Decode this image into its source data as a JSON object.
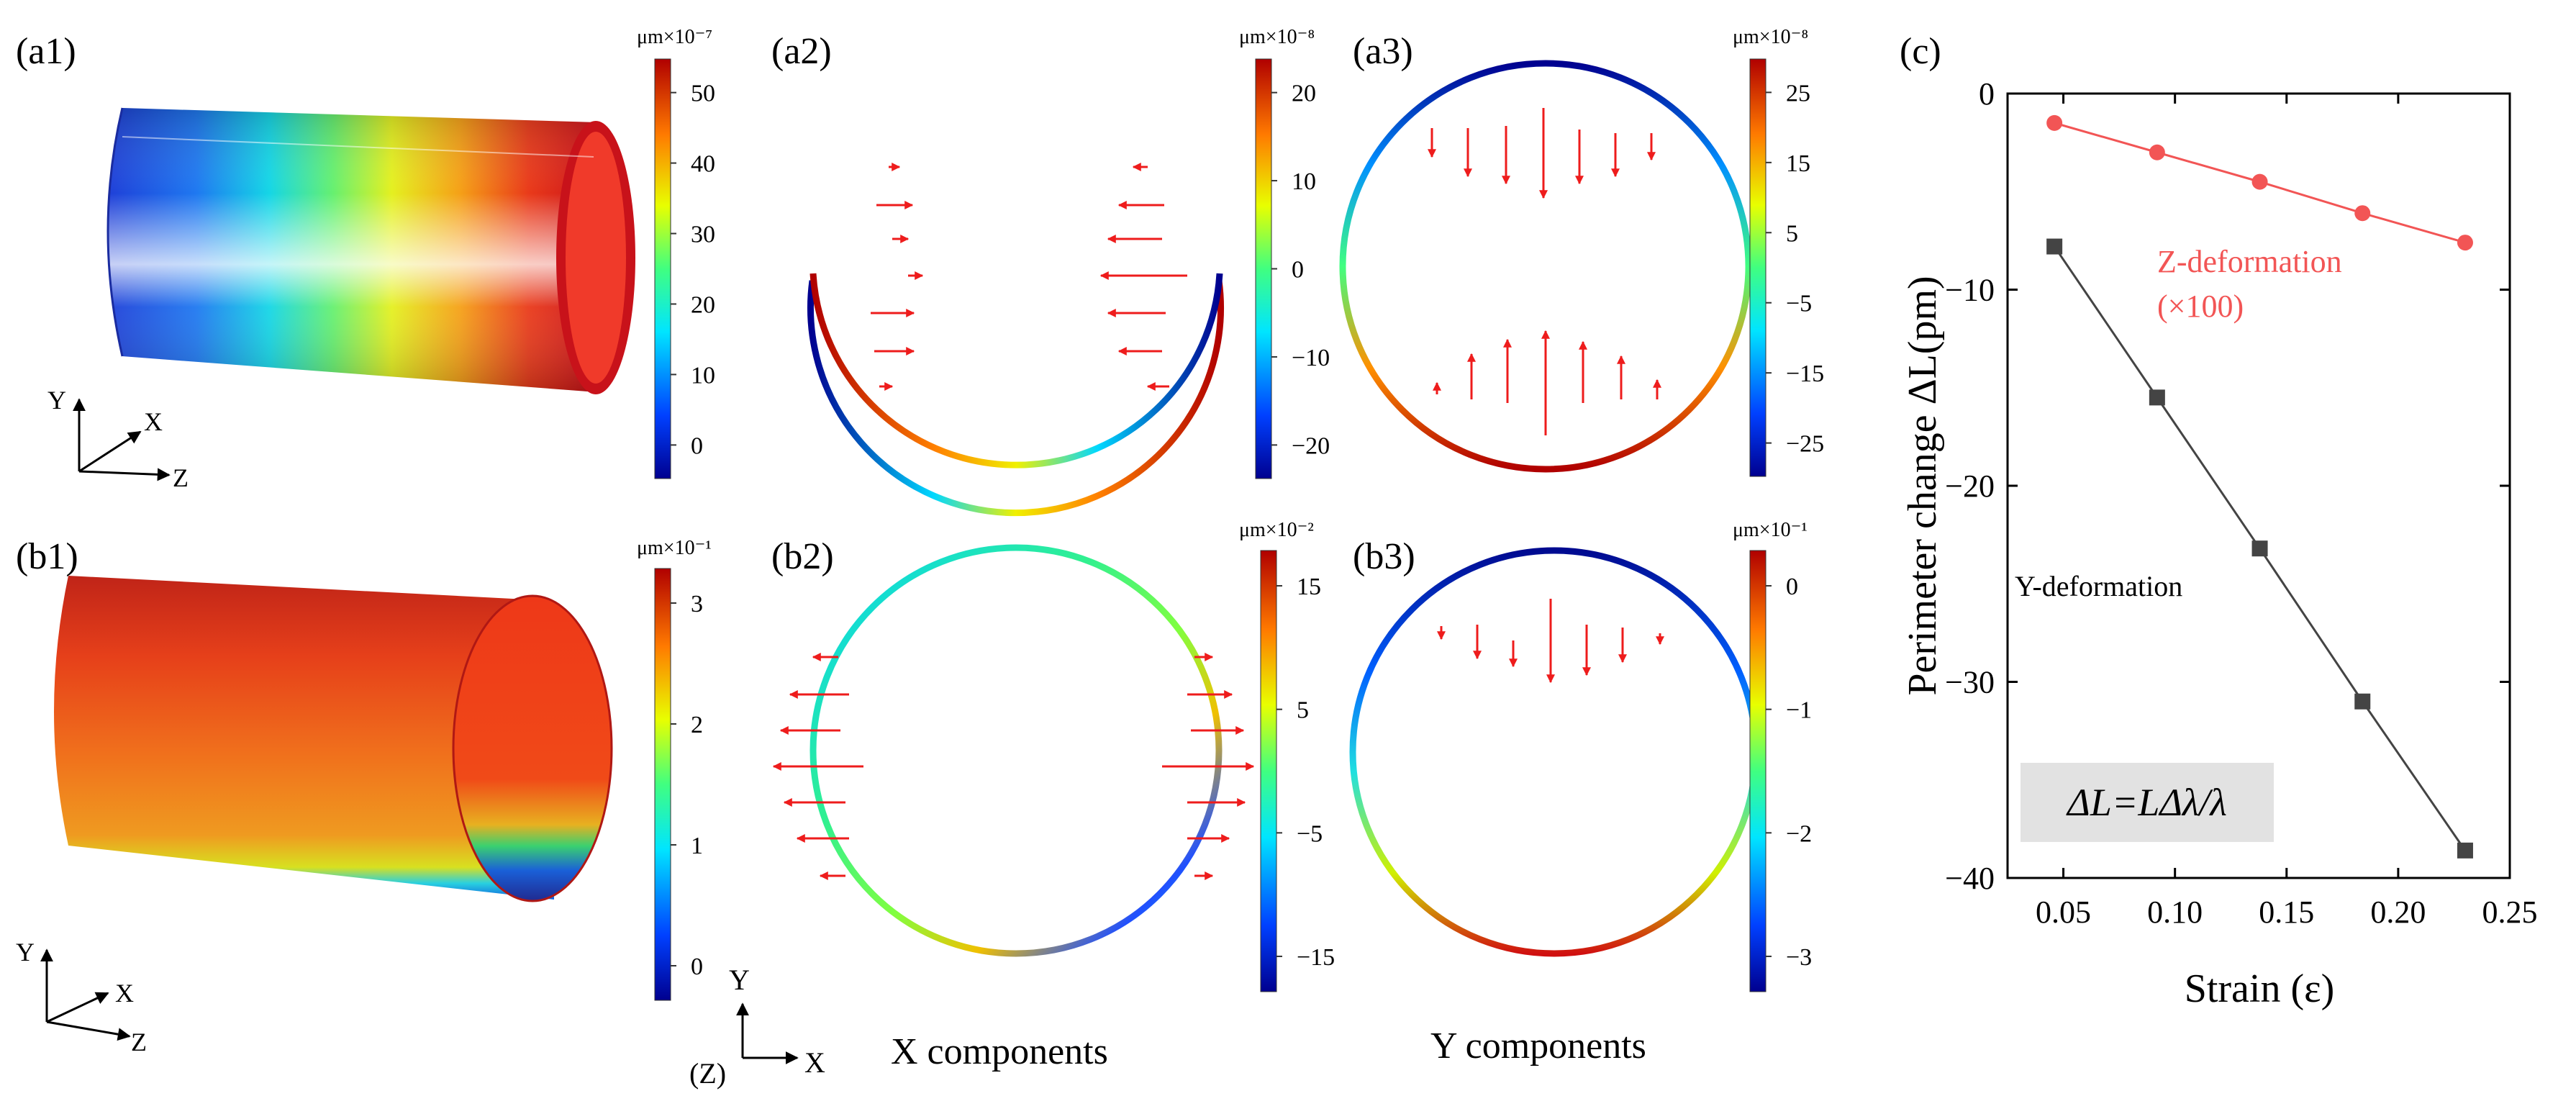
{
  "panel_labels": {
    "a1": "(a1)",
    "a2": "(a2)",
    "a3": "(a3)",
    "b1": "(b1)",
    "b2": "(b2)",
    "b3": "(b3)",
    "c": "(c)"
  },
  "colorbars": {
    "a1": {
      "unit": "μm×10⁻⁷",
      "ticks": [
        "50",
        "40",
        "30",
        "20",
        "10",
        "0"
      ]
    },
    "a2": {
      "unit": "μm×10⁻⁸",
      "ticks": [
        "20",
        "10",
        "0",
        "−10",
        "−20"
      ]
    },
    "a3": {
      "unit": "μm×10⁻⁸",
      "ticks": [
        "25",
        "15",
        "5",
        "−5",
        "−15",
        "−25"
      ]
    },
    "b1": {
      "unit": "μm×10⁻¹",
      "ticks": [
        "3",
        "2",
        "1",
        "0"
      ]
    },
    "b2": {
      "unit": "μm×10⁻²",
      "ticks": [
        "15",
        "5",
        "−5",
        "−15"
      ]
    },
    "b3": {
      "unit": "μm×10⁻¹",
      "ticks": [
        "0",
        "−1",
        "−2",
        "−3"
      ]
    }
  },
  "axes_labels": {
    "a1": {
      "y": "Y",
      "x": "X",
      "z": "Z"
    },
    "b1": {
      "y": "Y",
      "x": "X",
      "z": "Z"
    },
    "b2": {
      "y": "Y",
      "x": "X",
      "z": "(Z)"
    }
  },
  "captions": {
    "x_components": "X components",
    "y_components": "Y components"
  },
  "colors": {
    "arrow": "#ee1c1c",
    "z_series": "#f25555",
    "y_series": "#444444"
  },
  "chart_data": {
    "type": "line",
    "title": "",
    "xlabel": "Strain (ε)",
    "ylabel": "Perimeter change ΔL(pm)",
    "xlim": [
      0.025,
      0.25
    ],
    "ylim": [
      -40,
      0
    ],
    "xticks": [
      "0.05",
      "0.10",
      "0.15",
      "0.20",
      "0.25"
    ],
    "yticks": [
      "0",
      "−10",
      "−20",
      "−30",
      "−40"
    ],
    "series": [
      {
        "name": "Z-deformation",
        "name_line2": "(×100)",
        "marker": "circle",
        "x": [
          0.046,
          0.092,
          0.138,
          0.184,
          0.23
        ],
        "y": [
          -1.5,
          -3.0,
          -4.5,
          -6.1,
          -7.6
        ]
      },
      {
        "name": "Y-deformation",
        "marker": "square",
        "x": [
          0.046,
          0.092,
          0.138,
          0.184,
          0.23
        ],
        "y": [
          -7.8,
          -15.5,
          -23.2,
          -31.0,
          -38.6
        ]
      }
    ],
    "annotation": "ΔL=LΔλ/λ"
  }
}
